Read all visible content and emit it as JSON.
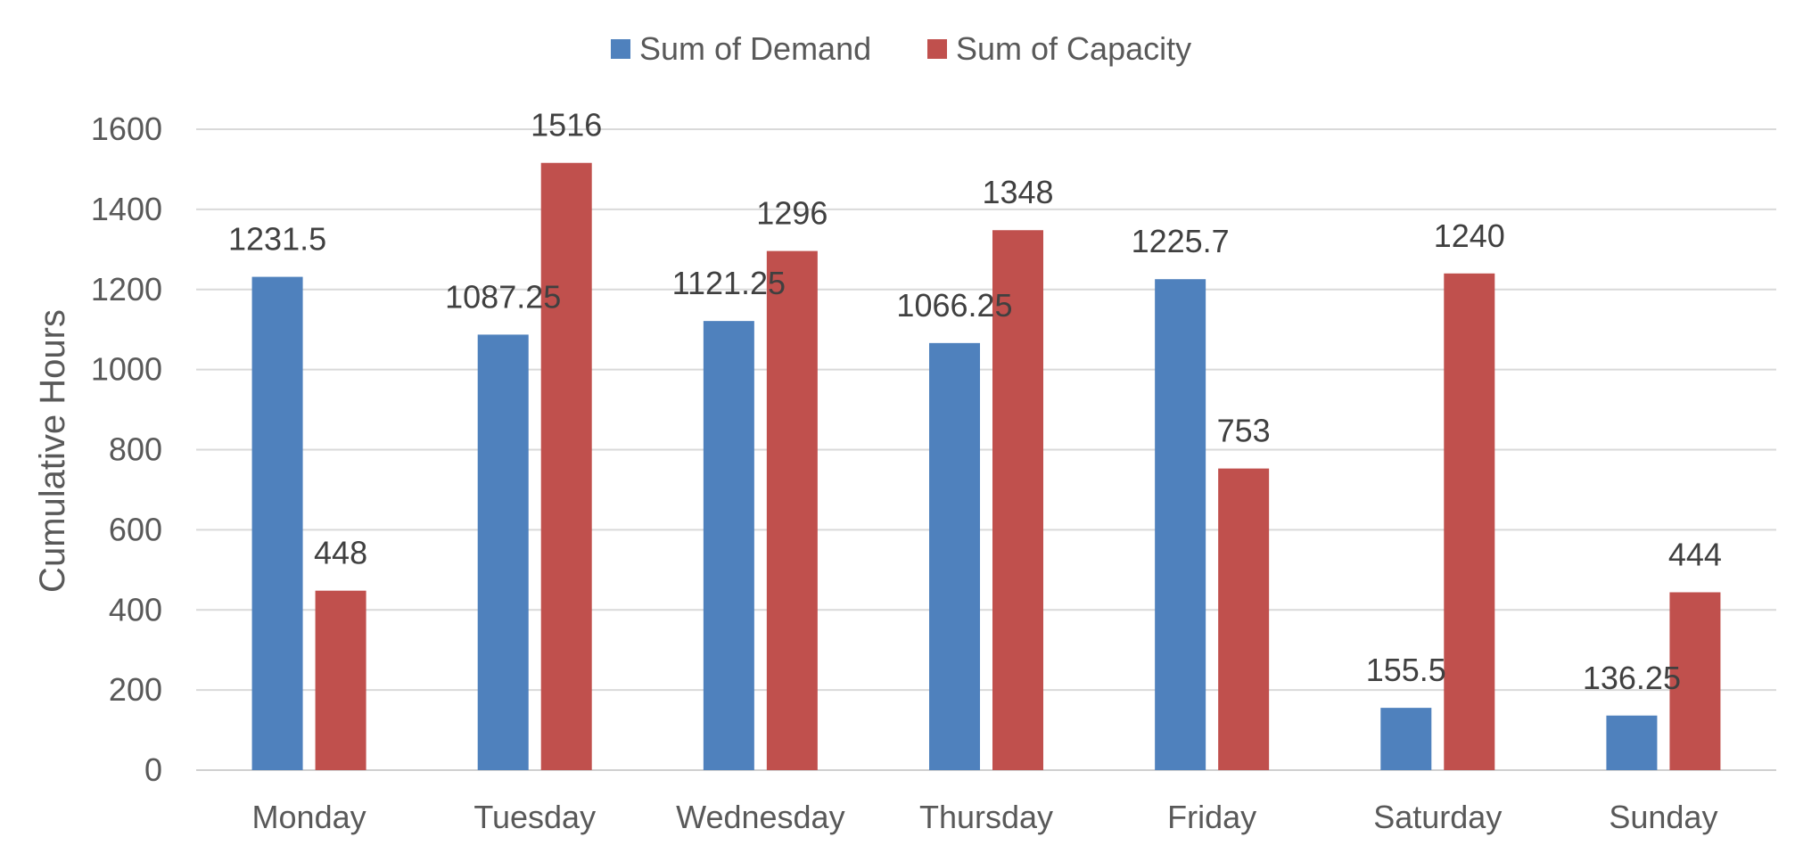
{
  "chart_data": {
    "type": "bar",
    "title": "",
    "xlabel": "",
    "ylabel": "Cumulative Hours",
    "ylim": [
      0,
      1600
    ],
    "ytick_step": 200,
    "grid": true,
    "legend_position": "top-center",
    "categories": [
      "Monday",
      "Tuesday",
      "Wednesday",
      "Thursday",
      "Friday",
      "Saturday",
      "Sunday"
    ],
    "series": [
      {
        "name": "Sum of Demand",
        "color": "#4f81bd",
        "values": [
          1231.5,
          1087.25,
          1121.25,
          1066.25,
          1225.7,
          155.5,
          136.25
        ],
        "labels": [
          "1231.5",
          "1087.25",
          "1121.25",
          "1066.25",
          "1225.7",
          "155.5",
          "136.25"
        ]
      },
      {
        "name": "Sum of Capacity",
        "color": "#c0504d",
        "values": [
          448,
          1516,
          1296,
          1348,
          753,
          1240,
          444
        ],
        "labels": [
          "448",
          "1516",
          "1296",
          "1348",
          "753",
          "1240",
          "444"
        ]
      }
    ]
  }
}
